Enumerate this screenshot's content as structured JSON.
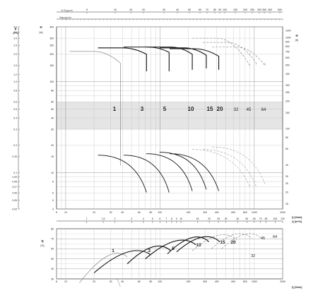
{
  "chart_data": [
    {
      "type": "line",
      "title": "",
      "x_axis_top_label": "U.S.g.p.m.",
      "x_axis_top_ticks": [
        "5",
        "10",
        "15",
        "20",
        "30",
        "40",
        "50",
        "60",
        "70",
        "80",
        "90",
        "100",
        "150",
        "200",
        "250",
        "300",
        "350",
        "400",
        "500"
      ],
      "x_axis_top2_label": "Imp.g.p.m.",
      "x_axis_bottom_label": "Q [l/min]",
      "x_axis_bottom_ticks": [
        "8",
        "10",
        "20",
        "30",
        "40",
        "60",
        "80",
        "100",
        "200",
        "300",
        "400",
        "600",
        "800",
        "1000",
        "2000"
      ],
      "x_axis_m3h_label": "Q [m³/h]",
      "x_axis_m3h_ticks": [
        "1",
        "1.5",
        "2",
        "3",
        "4",
        "5",
        "6",
        "7",
        "8",
        "9",
        "10",
        "15",
        "20",
        "25",
        "30",
        "40",
        "50",
        "60",
        "70",
        "80",
        "100",
        "120"
      ],
      "y_axis_left_pressure_label": "p [kPa]",
      "y_axis_left_pressure_ticks": [
        "4.0",
        "3.5",
        "3.0",
        "2.5",
        "2.0",
        "1.5",
        "1.2",
        "1.0",
        "0.8",
        "0.6",
        "0.5",
        "0.4",
        "0.3",
        "0.2",
        "0.15",
        "0.1",
        "0.09",
        "0.08",
        "0.07",
        "0.06",
        "0.05",
        "0.04"
      ],
      "y_axis_left_head_label": "H [m]",
      "y_axis_left_head_ticks": [
        "400",
        "300",
        "250",
        "200",
        "150",
        "100",
        "80",
        "60",
        "50",
        "40",
        "30",
        "20",
        "15",
        "10",
        "8",
        "6",
        "5",
        "4"
      ],
      "y_axis_right_label": "H [ft]",
      "y_axis_right_ticks": [
        "1200",
        "1000",
        "900",
        "800",
        "700",
        "600",
        "500",
        "400",
        "300",
        "250",
        "200",
        "150",
        "100",
        "80",
        "60",
        "40",
        "30",
        "25",
        "20",
        "15"
      ],
      "series": [
        {
          "name": "1",
          "style": "solid-thin",
          "peak_head_m": 215
        },
        {
          "name": "3",
          "style": "solid",
          "peak_head_m": 235
        },
        {
          "name": "5",
          "style": "solid",
          "peak_head_m": 240
        },
        {
          "name": "10",
          "style": "solid",
          "peak_head_m": 240
        },
        {
          "name": "15",
          "style": "solid",
          "peak_head_m": 235
        },
        {
          "name": "20",
          "style": "solid",
          "peak_head_m": 230
        },
        {
          "name": "32",
          "style": "dashed",
          "peak_head_m": 300
        },
        {
          "name": "45",
          "style": "dashed",
          "peak_head_m": 270
        },
        {
          "name": "64",
          "style": "dashed",
          "peak_head_m": 240
        }
      ],
      "labels_color": {
        "1": "#111",
        "3": "#111",
        "5": "#111",
        "10": "#111",
        "15": "#111",
        "20": "#111",
        "32": "#888",
        "45": "#888",
        "64": "#888"
      },
      "grid": true,
      "band_ylim_m": [
        30,
        60
      ]
    },
    {
      "type": "line",
      "title": "",
      "y_axis_label": "η [%]",
      "y_axis_ticks": [
        "80",
        "70",
        "60",
        "50",
        "40",
        "30"
      ],
      "x_axis_label": "Q [l/min]",
      "x_axis_ticks": [
        "8",
        "10",
        "20",
        "30",
        "40",
        "60",
        "80",
        "100",
        "200",
        "300",
        "400",
        "600",
        "800",
        "1000",
        "2000"
      ],
      "series": [
        {
          "name": "1",
          "style": "solid-thin",
          "peak_eff": 58
        },
        {
          "name": "3",
          "style": "solid",
          "peak_eff": 60
        },
        {
          "name": "5",
          "style": "solid",
          "peak_eff": 64
        },
        {
          "name": "10",
          "style": "solid",
          "peak_eff": 70
        },
        {
          "name": "15",
          "style": "solid",
          "peak_eff": 73
        },
        {
          "name": "20",
          "style": "solid",
          "peak_eff": 73
        },
        {
          "name": "32",
          "style": "dashed",
          "peak_eff": 75
        },
        {
          "name": "45",
          "style": "dashed",
          "peak_eff": 76
        },
        {
          "name": "64",
          "style": "dashed",
          "peak_eff": 76
        }
      ],
      "grid": true
    }
  ]
}
